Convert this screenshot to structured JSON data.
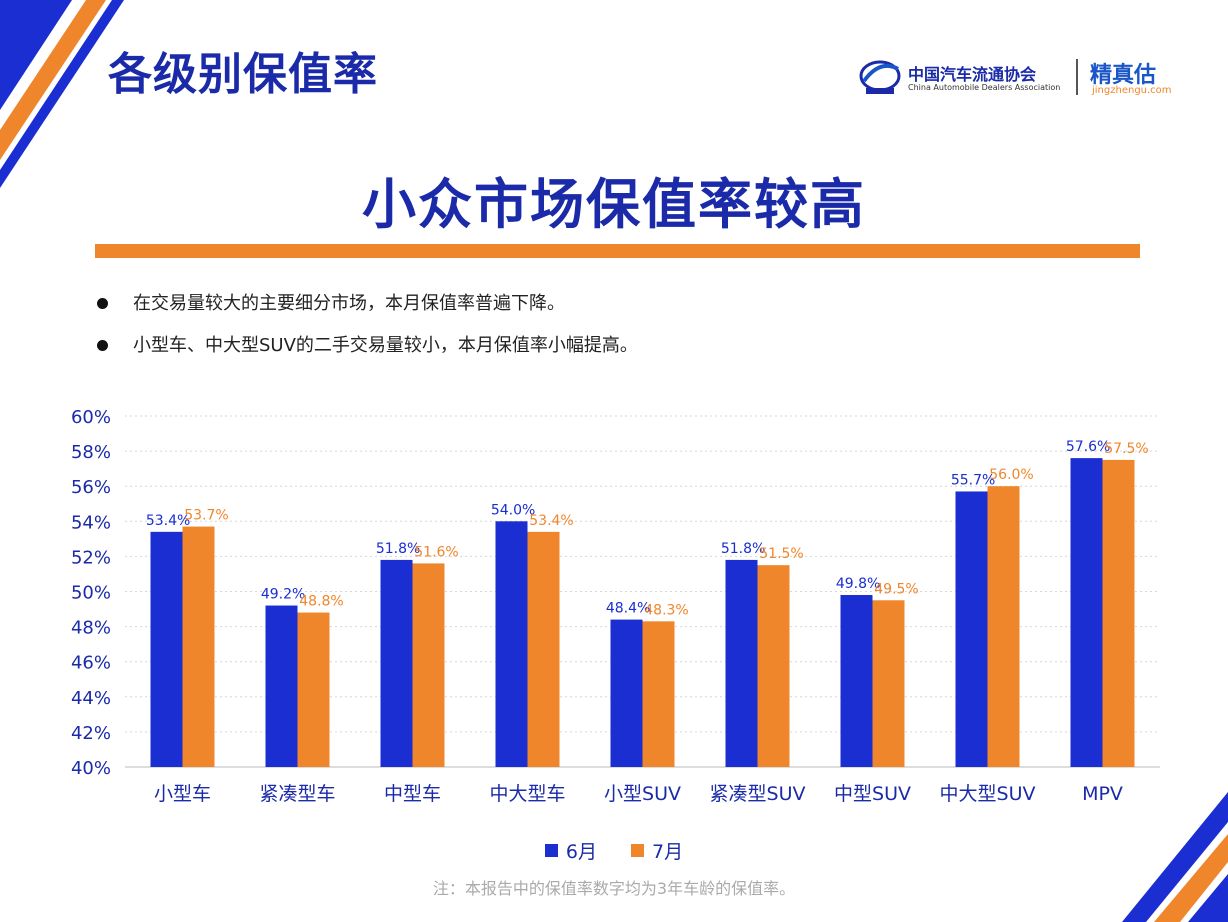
{
  "header": {
    "page_title": "各级别保值率",
    "org_name_cn": "中国汽车流通协会",
    "org_name_en": "China Automobile Dealers Association",
    "brand_name": "精真估",
    "brand_url": "jingzhengu.com"
  },
  "headline": "小众市场保值率较高",
  "bullets": [
    "在交易量较大的主要细分市场，本月保值率普遍下降。",
    "小型车、中大型SUV的二手交易量较小，本月保值率小幅提高。"
  ],
  "footnote": "注：本报告中的保值率数字均为3年车龄的保值率。",
  "colors": {
    "june": "#1a2ed1",
    "july": "#f0862b",
    "title": "#1a2aa8",
    "accent": "#f0862b"
  },
  "chart_data": {
    "type": "bar",
    "categories": [
      "小型车",
      "紧凑型车",
      "中型车",
      "中大型车",
      "小型SUV",
      "紧凑型SUV",
      "中型SUV",
      "中大型SUV",
      "MPV"
    ],
    "series": [
      {
        "name": "6月",
        "values": [
          53.4,
          49.2,
          51.8,
          54.0,
          48.4,
          51.8,
          49.8,
          55.7,
          57.6
        ],
        "labels": [
          "53.4%",
          "49.2%",
          "51.8%",
          "54.0%",
          "48.4%",
          "51.8%",
          "49.8%",
          "55.7%",
          "57.6%"
        ]
      },
      {
        "name": "7月",
        "values": [
          53.7,
          48.8,
          51.6,
          53.4,
          48.3,
          51.5,
          49.5,
          56.0,
          57.5
        ],
        "labels": [
          "53.7%",
          "48.8%",
          "51.6%",
          "53.4%",
          "48.3%",
          "51.5%",
          "49.5%",
          "56.0%",
          "57.5%"
        ]
      }
    ],
    "ylim": [
      40,
      60
    ],
    "yticks": [
      "40%",
      "42%",
      "44%",
      "46%",
      "48%",
      "50%",
      "52%",
      "54%",
      "56%",
      "58%",
      "60%"
    ],
    "grid": true,
    "legend": "bottom"
  }
}
